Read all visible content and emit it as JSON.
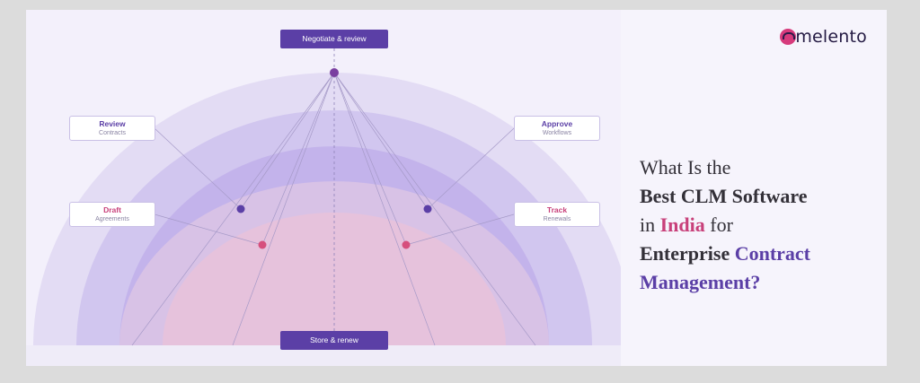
{
  "brand": {
    "name": "melento",
    "icon": "logo-circle-icon"
  },
  "top_stage": "Negotiate & review",
  "bottom_stage": "Store & renew",
  "stages": {
    "review": {
      "title": "Review",
      "sub": "Contracts"
    },
    "approve": {
      "title": "Approve",
      "sub": "Workflows"
    },
    "draft": {
      "title": "Draft",
      "sub": "Agreements"
    },
    "track": {
      "title": "Track",
      "sub": "Renewals"
    }
  },
  "headline": {
    "line1": "What Is the",
    "line2": "Best CLM Software",
    "line3_pre": "in ",
    "line3_accent": "India",
    "line3_post": " for",
    "line4_bold": "Enterprise ",
    "line4_accent": "Contract",
    "line5_accent": "Management?"
  },
  "colors": {
    "purple": "#5b3fa6",
    "pink": "#c8407a",
    "ring1": "#e3dcf4",
    "ring2": "#d1c6ef",
    "ring3": "#c3b3eb",
    "ring4": "#d8c2e6",
    "ring5": "#e6c2dc"
  }
}
